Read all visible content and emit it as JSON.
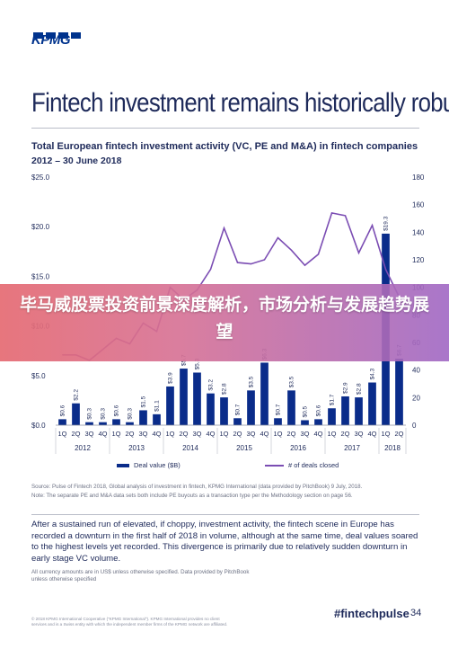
{
  "header": {
    "logo_text": "KPMG",
    "headline": "Fintech investment remains historically robust"
  },
  "chart_data": {
    "type": "bar+line",
    "title": "Total European fintech investment activity (VC, PE and M&A) in fintech companies",
    "subtitle": "2012 – 30 June 2018",
    "quarters": [
      "1Q",
      "2Q",
      "3Q",
      "4Q",
      "1Q",
      "2Q",
      "3Q",
      "4Q",
      "1Q",
      "2Q",
      "3Q",
      "4Q",
      "1Q",
      "2Q",
      "3Q",
      "4Q",
      "1Q",
      "2Q",
      "3Q",
      "4Q",
      "1Q",
      "2Q",
      "3Q",
      "4Q",
      "1Q",
      "2Q"
    ],
    "years": [
      "2012",
      "2013",
      "2014",
      "2015",
      "2016",
      "2017",
      "2018"
    ],
    "quarters_per_year": [
      4,
      4,
      4,
      4,
      4,
      4,
      2
    ],
    "left_axis": {
      "ticks": [
        "$0.0",
        "$5.0",
        "$10.0",
        "$15.0",
        "$20.0",
        "$25.0"
      ],
      "min": 0,
      "max": 25
    },
    "right_axis": {
      "ticks": [
        "0",
        "20",
        "40",
        "60",
        "80",
        "100",
        "120",
        "140",
        "160",
        "180"
      ],
      "min": 0,
      "max": 180
    },
    "bar_labels": [
      "$0.6",
      "$2.2",
      "$0.3",
      "$0.3",
      "$0.6",
      "$0.3",
      "$1.5",
      "$1.1",
      "$3.9",
      "$5.7",
      "$5.3",
      "$3.2",
      "$2.8",
      "$0.7",
      "$3.5",
      "$6.3",
      "$0.7",
      "$3.5",
      "$0.5",
      "$0.6",
      "$1.7",
      "$2.9",
      "$2.8",
      "$4.3",
      "$19.3",
      "$6.7"
    ],
    "series": [
      {
        "name": "Deal value ($B)",
        "kind": "bar",
        "axis": "left",
        "values": [
          0.6,
          2.2,
          0.3,
          0.3,
          0.6,
          0.3,
          1.5,
          1.1,
          3.9,
          5.7,
          5.3,
          3.2,
          2.8,
          0.7,
          3.5,
          6.3,
          0.7,
          3.5,
          0.5,
          0.6,
          1.7,
          2.9,
          2.8,
          4.3,
          19.3,
          6.7
        ]
      },
      {
        "name": "# of deals closed",
        "kind": "line",
        "axis": "right",
        "values": [
          51,
          51,
          47,
          55,
          63,
          59,
          74,
          68,
          100,
          91,
          98,
          113,
          143,
          118,
          117,
          120,
          136,
          127,
          116,
          124,
          154,
          152,
          125,
          145,
          113,
          93
        ]
      }
    ],
    "colors": {
      "bar": "#0a2c8a",
      "line": "#7b4db3",
      "axis_text": "#1e2a5a",
      "grid": "#d5d8e0"
    },
    "legend_position": "bottom"
  },
  "banner": {
    "text": "毕马威股票投资前景深度解析，市场分析与发展趋势展望"
  },
  "source": {
    "line1": "Source: Pulse of Fintech 2018, Global analysis of investment in fintech, KPMG International (data provided by PitchBook) 9 July, 2018.",
    "line2": "Note: The separate PE and M&A data sets both include PE buyouts as a transaction type per the Methodology section on page 56."
  },
  "commentary": "After a sustained run of elevated, if choppy, investment activity, the fintech scene in Europe has recorded a downturn in the first half of 2018 in volume, although at the same time, deal values soared to the highest levels yet recorded. This divergence is primarily due to relatively sudden downturn in early stage VC volume.",
  "footnote": {
    "line1": "All currency amounts are in US$ unless otherwise specified. Data provided by PitchBook",
    "line2": "unless otherwise specified"
  },
  "footer": {
    "copyright_1": "© 2018 KPMG International Cooperative (\"KPMG International\"). KPMG International provides no client",
    "copyright_2": "services and is a Swiss entity with which the independent member firms of the KPMG network are affiliated.",
    "hashtag": "#fintechpulse",
    "page_number": "34"
  }
}
